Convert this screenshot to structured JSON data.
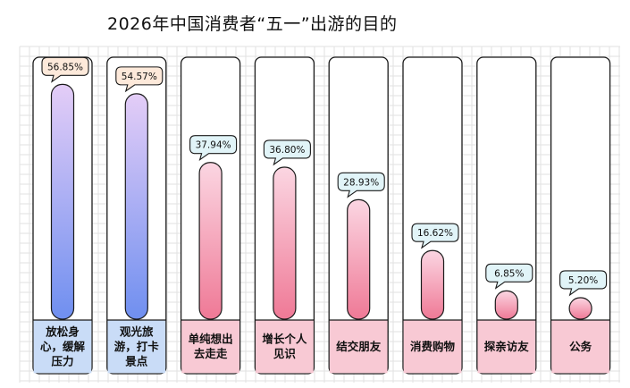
{
  "chart_data": {
    "type": "bar",
    "title": "2026年中国消费者“五一”出游的目的",
    "categories": [
      [
        "放松身",
        "心，缓解",
        "压力"
      ],
      [
        "观光旅",
        "游，打卡",
        "景点"
      ],
      [
        "单纯想出",
        "去走走"
      ],
      [
        "增长个人",
        "见识"
      ],
      [
        "结交朋友"
      ],
      [
        "消费购物"
      ],
      [
        "探亲访友"
      ],
      [
        "公务"
      ]
    ],
    "values": [
      56.85,
      54.57,
      37.94,
      36.8,
      28.93,
      16.62,
      6.85,
      5.2
    ],
    "value_labels": [
      "56.85%",
      "54.57%",
      "37.94%",
      "36.80%",
      "28.93%",
      "16.62%",
      "6.85%",
      "5.20%"
    ],
    "ylim": [
      0,
      60
    ],
    "grid": true,
    "colors": {
      "purple_top": "#e4cdf7",
      "purple_bottom": "#6f8ff0",
      "pink_top": "#fbd6e2",
      "pink_bottom": "#ef7996",
      "label_purple": "#c9dcf7",
      "label_pink": "#f8c9d4",
      "callout_first": "#fde9da",
      "callout_default": "#e1f4f8",
      "grid": "#e2e2e2",
      "outline": "#1a1a1a"
    }
  }
}
